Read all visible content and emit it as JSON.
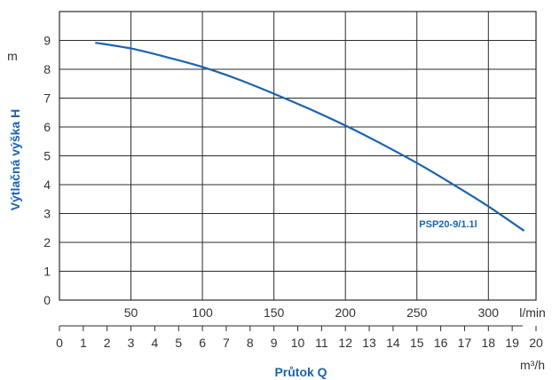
{
  "chart_data": {
    "type": "line",
    "xlabel": "Průtok Q",
    "ylabel": "Výtlačná výška H",
    "y_unit": "m",
    "x_unit_primary": "l/min",
    "x_unit_secondary": "m³/h",
    "ylim": [
      0,
      10
    ],
    "y_ticks": [
      "0",
      "1",
      "2",
      "3",
      "4",
      "5",
      "6",
      "7",
      "8",
      "9"
    ],
    "xlim_lmin": [
      0,
      333.33
    ],
    "x_ticks_lmin": [
      "50",
      "100",
      "150",
      "200",
      "250",
      "300"
    ],
    "x_ticks_m3h": [
      "0",
      "1",
      "2",
      "3",
      "4",
      "5",
      "6",
      "7",
      "8",
      "9",
      "10",
      "11",
      "12",
      "13",
      "14",
      "15",
      "16",
      "17",
      "18",
      "19",
      "20"
    ],
    "grid": true,
    "series": [
      {
        "name": "PSP20-9/1.1l",
        "color": "#1a63ad",
        "x_lmin": [
          25,
          50,
          75,
          100,
          125,
          150,
          175,
          200,
          225,
          250,
          275,
          300,
          325
        ],
        "y": [
          8.92,
          8.72,
          8.42,
          8.08,
          7.65,
          7.15,
          6.62,
          6.05,
          5.42,
          4.75,
          4.02,
          3.25,
          2.4
        ]
      }
    ]
  }
}
